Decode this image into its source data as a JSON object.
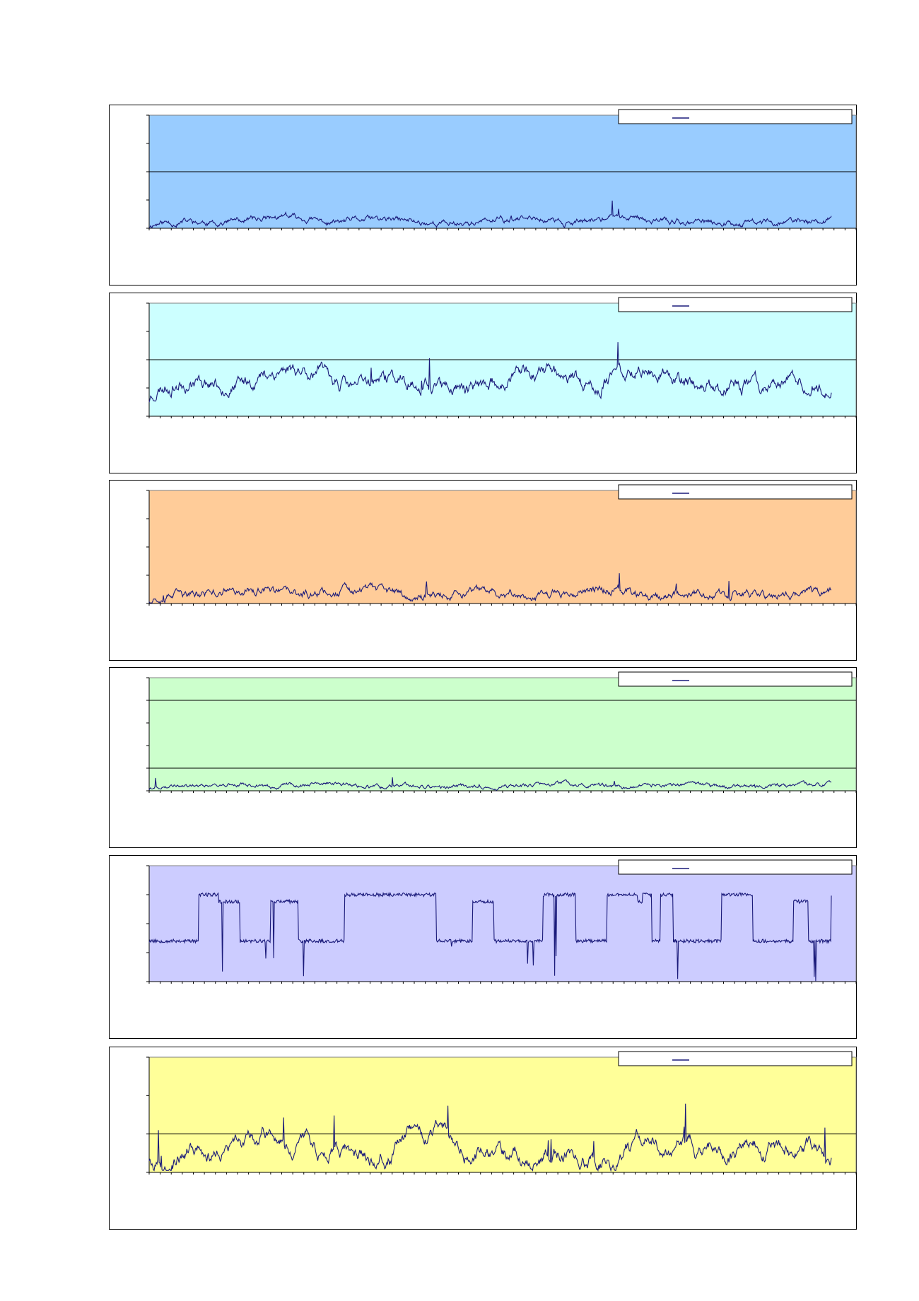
{
  "colors": {
    "line": "#1a1a7a",
    "axis": "#000000"
  },
  "chart_data": [
    {
      "type": "line",
      "plot_bg": "#99ccff",
      "ylim": [
        0,
        4
      ],
      "hlines": [
        2
      ],
      "ticks": 4,
      "legend": "",
      "legend_position": "top-right",
      "style": "spiky",
      "base": 0.05,
      "amp": 0.55,
      "seed": 11
    },
    {
      "type": "line",
      "plot_bg": "#ccffff",
      "ylim": [
        0,
        4
      ],
      "hlines": [
        2
      ],
      "ticks": 4,
      "legend": "",
      "legend_position": "top-right",
      "style": "wavy",
      "base": 0.5,
      "amp": 1.2,
      "seed": 23
    },
    {
      "type": "line",
      "plot_bg": "#ffcc99",
      "ylim": [
        0,
        4
      ],
      "hlines": [],
      "ticks": 4,
      "legend": "",
      "legend_position": "top-right",
      "style": "spiky",
      "base": 0.08,
      "amp": 0.75,
      "seed": 37
    },
    {
      "type": "line",
      "plot_bg": "#ccffcc",
      "ylim": [
        0,
        5
      ],
      "hlines": [
        4,
        1
      ],
      "ticks": 5,
      "legend": "",
      "legend_position": "top-right",
      "style": "low",
      "base": 0.05,
      "amp": 0.45,
      "seed": 41
    },
    {
      "type": "line",
      "plot_bg": "#ccccff",
      "ylim": [
        0,
        4
      ],
      "hlines": [],
      "ticks": 4,
      "legend": "",
      "legend_position": "top-right",
      "style": "square",
      "base": 1.4,
      "amp": 1.6,
      "seed": 53
    },
    {
      "type": "line",
      "plot_bg": "#ffff99",
      "ylim": [
        0,
        3
      ],
      "hlines": [
        1
      ],
      "ticks": 3,
      "legend": "",
      "legend_position": "top-right",
      "style": "noisy",
      "base": 0.35,
      "amp": 0.9,
      "seed": 67
    }
  ]
}
